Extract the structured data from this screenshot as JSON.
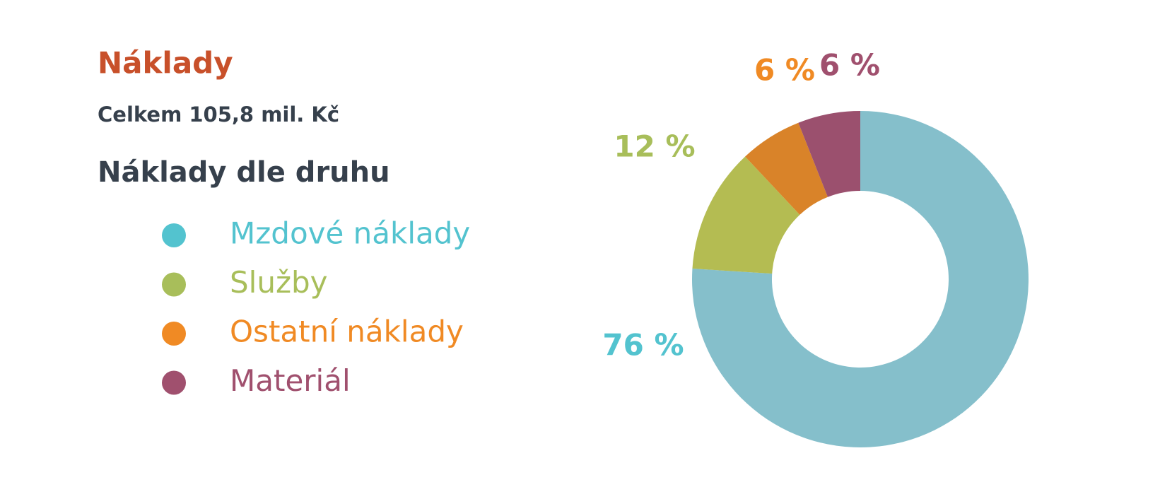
{
  "chart_data": {
    "type": "donut",
    "title": "Náklady",
    "subtitle": "Celkem 105,8 mil. Kč",
    "legend_title": "Náklady dle druhu",
    "categories": [
      "Mzdové náklady",
      "Služby",
      "Ostatní náklady",
      "Materiál"
    ],
    "values": [
      76,
      12,
      6,
      6
    ],
    "value_labels": [
      "76 %",
      "12 %",
      "6 %",
      "6 %"
    ],
    "colors": [
      "#53c3cf",
      "#a8be5a",
      "#f08a24",
      "#a0506e"
    ],
    "slice_colors": [
      "#85bfcb",
      "#b4bc52",
      "#d98329",
      "#9b506e"
    ]
  }
}
